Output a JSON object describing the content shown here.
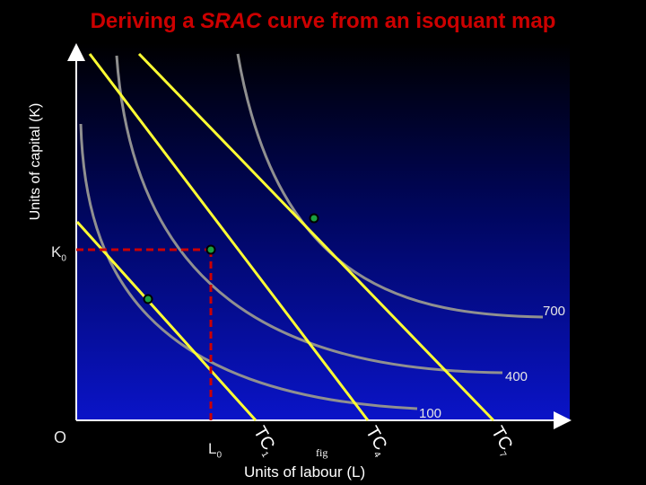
{
  "title": {
    "part1": "Deriving a ",
    "emph": "SRAC",
    "part2": " curve from an isoquant map"
  },
  "axes": {
    "y_label": "Units of capital (K)",
    "x_label": "Units of labour (L)",
    "origin": "O"
  },
  "markers": {
    "k_main": "K",
    "k_sub": "0",
    "l_main": "L",
    "l_sub": "0"
  },
  "isoquants": [
    "100",
    "400",
    "700"
  ],
  "cost_lines": [
    {
      "main": "TC",
      "sub": "1"
    },
    {
      "main": "TC",
      "sub": "4"
    },
    {
      "main": "TC",
      "sub": "7"
    }
  ],
  "fig_label": "fig",
  "colors": {
    "title": "#cc0000",
    "cost_line": "#ffff33",
    "dashed": "#cc0000",
    "isoquant": "#909090"
  }
}
